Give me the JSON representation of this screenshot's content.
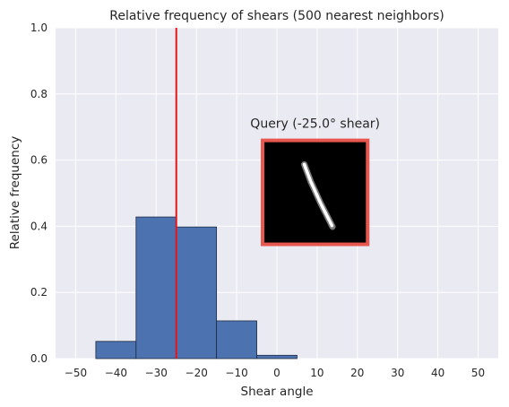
{
  "chart_data": {
    "type": "bar",
    "title": "Relative frequency of shears (500 nearest neighbors)",
    "xlabel": "Shear angle",
    "ylabel": "Relative frequency",
    "xlim": [
      -55,
      55
    ],
    "ylim": [
      0,
      1.0
    ],
    "xticks": [
      -50,
      -40,
      -30,
      -20,
      -10,
      0,
      10,
      20,
      30,
      40,
      50
    ],
    "yticks": [
      0.0,
      0.2,
      0.4,
      0.6,
      0.8,
      1.0
    ],
    "xtick_labels": [
      "−50",
      "−40",
      "−30",
      "−20",
      "−10",
      "0",
      "10",
      "20",
      "30",
      "40",
      "50"
    ],
    "ytick_labels": [
      "0.0",
      "0.2",
      "0.4",
      "0.6",
      "0.8",
      "1.0"
    ],
    "bins": [
      {
        "start": -45,
        "end": -35,
        "value": 0.052
      },
      {
        "start": -35,
        "end": -25,
        "value": 0.428
      },
      {
        "start": -25,
        "end": -15,
        "value": 0.398
      },
      {
        "start": -15,
        "end": -5,
        "value": 0.114
      },
      {
        "start": -5,
        "end": 5,
        "value": 0.01
      }
    ],
    "query_line_x": -25.0,
    "grid": true,
    "inset": {
      "label": "Query (-25.0° shear)",
      "x_range": [
        -4,
        23
      ],
      "y_range": [
        0.34,
        0.665
      ]
    },
    "colors": {
      "bar": "#4c72b0",
      "bar_edge": "#1c2a44",
      "query_line": "#e8141a",
      "inset_border": "#e8574f",
      "background": "#eaeaf2",
      "grid": "#ffffff"
    }
  }
}
